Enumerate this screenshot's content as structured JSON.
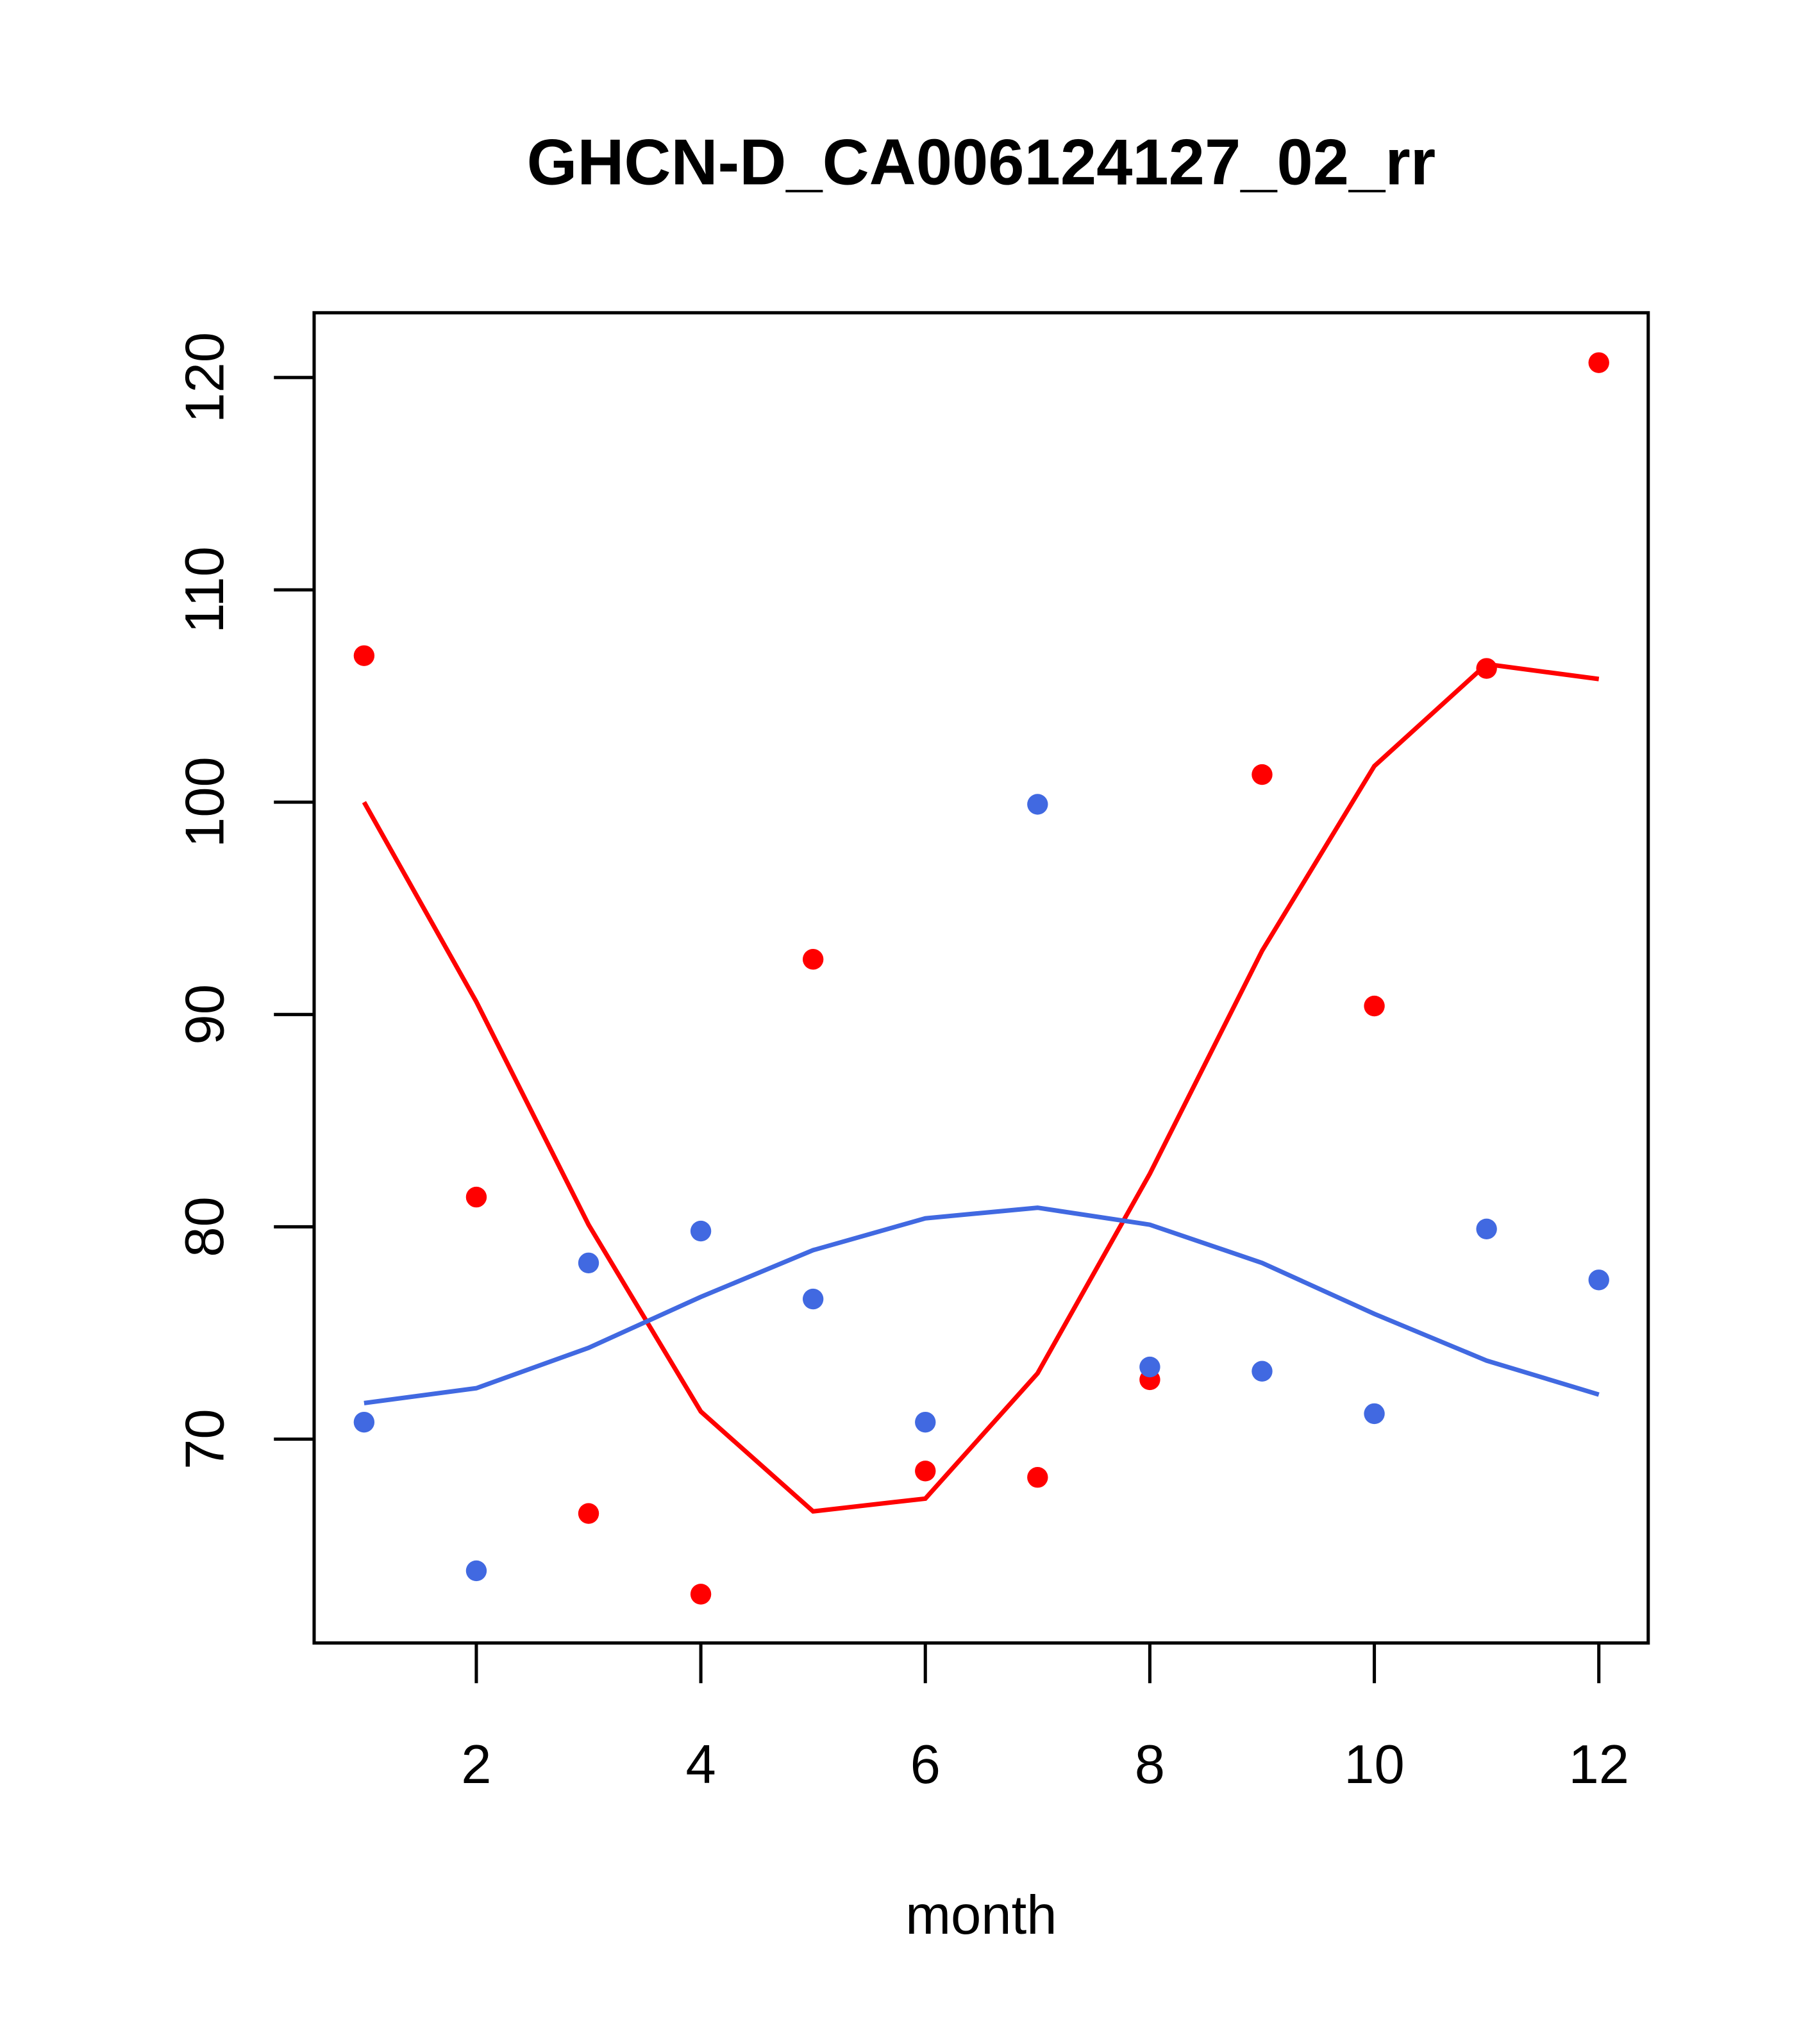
{
  "chart_data": {
    "type": "scatter",
    "title": "GHCN-D_CA006124127_02_rr",
    "xlabel": "month",
    "ylabel": "",
    "xlim": [
      0.555,
      12.44
    ],
    "ylim": [
      60.4,
      123.05
    ],
    "xticks": [
      2,
      4,
      6,
      8,
      10,
      12
    ],
    "yticks": [
      70,
      80,
      90,
      100,
      110,
      120
    ],
    "grid": false,
    "x": [
      1,
      2,
      3,
      4,
      5,
      6,
      7,
      8,
      9,
      10,
      11,
      12
    ],
    "series": [
      {
        "name": "red points",
        "kind": "points",
        "color": "#ff0000",
        "values": [
          106.9,
          81.4,
          66.5,
          62.7,
          92.6,
          68.5,
          68.2,
          72.8,
          101.3,
          90.4,
          106.3,
          120.7
        ]
      },
      {
        "name": "blue points",
        "kind": "points",
        "color": "#4169e1",
        "values": [
          70.8,
          63.8,
          78.3,
          79.8,
          76.6,
          70.8,
          99.9,
          73.4,
          73.2,
          71.2,
          79.9,
          77.5
        ]
      },
      {
        "name": "red line",
        "kind": "line",
        "color": "#ff0000",
        "values": [
          100.0,
          90.6,
          80.1,
          71.3,
          66.6,
          67.2,
          73.1,
          82.5,
          93.0,
          101.7,
          106.5,
          105.8
        ]
      },
      {
        "name": "blue line",
        "kind": "line",
        "color": "#4169e1",
        "values": [
          71.7,
          72.4,
          74.3,
          76.7,
          78.9,
          80.4,
          80.9,
          80.1,
          78.3,
          75.9,
          73.7,
          72.1
        ]
      }
    ]
  }
}
